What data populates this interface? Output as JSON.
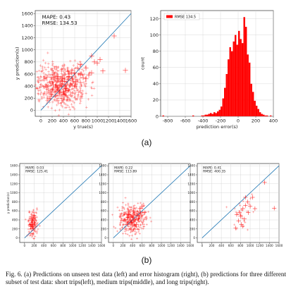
{
  "figure": {
    "label_a": "(a)",
    "label_b": "(b)",
    "caption": "Fig. 6.  (a) Predictions on unseen test data (left) and error histogram (right), (b) predictions for three different subset of test data: short trips(left), medium trips(middle), and long trips(right)."
  },
  "chart_data": [
    {
      "type": "scatter",
      "panel": "a-left",
      "xlabel": "y true(s)",
      "ylabel": "y prediction(s)",
      "xlim": [
        -100,
        1600
      ],
      "ylim": [
        -100,
        1650
      ],
      "x_ticks": [
        0,
        200,
        400,
        600,
        800,
        1000,
        1200,
        1400,
        1600
      ],
      "y_ticks": [
        0,
        200,
        400,
        600,
        800,
        1000,
        1200,
        1400,
        1600
      ],
      "grid": true,
      "annotations": [
        "MAPE: 0.43",
        "RMSE: 134.53"
      ],
      "reference_line": [
        [
          0,
          0
        ],
        [
          1600,
          1600
        ]
      ],
      "points": [
        [
          350,
          420
        ],
        [
          420,
          480
        ],
        [
          300,
          380
        ],
        [
          500,
          560
        ],
        [
          250,
          300
        ],
        [
          600,
          620
        ],
        [
          180,
          260
        ],
        [
          450,
          360
        ],
        [
          380,
          520
        ],
        [
          520,
          420
        ],
        [
          650,
          700
        ],
        [
          700,
          600
        ],
        [
          220,
          420
        ],
        [
          560,
          520
        ],
        [
          400,
          300
        ],
        [
          300,
          560
        ],
        [
          150,
          200
        ],
        [
          480,
          640
        ],
        [
          620,
          480
        ],
        [
          800,
          700
        ],
        [
          750,
          540
        ],
        [
          900,
          900
        ],
        [
          1000,
          780
        ],
        [
          850,
          580
        ],
        [
          1050,
          840
        ],
        [
          1300,
          1230
        ],
        [
          1500,
          660
        ],
        [
          950,
          800
        ],
        [
          1100,
          650
        ],
        [
          700,
          760
        ],
        [
          550,
          660
        ],
        [
          330,
          300
        ],
        [
          260,
          400
        ],
        [
          440,
          420
        ],
        [
          600,
          400
        ],
        [
          700,
          460
        ],
        [
          800,
          520
        ],
        [
          900,
          620
        ]
      ]
    },
    {
      "type": "bar",
      "panel": "a-right",
      "xlabel": "prediction error(s)",
      "ylabel": "count",
      "xlim": [
        -880,
        400
      ],
      "ylim": [
        0,
        130
      ],
      "x_ticks": [
        -800,
        -600,
        -400,
        -200,
        0,
        200,
        400
      ],
      "y_ticks": [
        0,
        20,
        40,
        60,
        80,
        100,
        120
      ],
      "grid": true,
      "legend": "top-left",
      "series": [
        {
          "name": "RMSE 134.5",
          "color": "#ff0000"
        }
      ],
      "bin_width": 20,
      "bin_start": -860,
      "values": [
        1,
        0,
        0,
        0,
        0,
        0,
        0,
        0,
        0,
        0,
        0,
        0,
        0,
        0,
        0,
        0,
        0,
        1,
        0,
        0,
        0,
        0,
        1,
        1,
        2,
        2,
        3,
        4,
        3,
        5,
        4,
        6,
        8,
        12,
        22,
        35,
        52,
        70,
        85,
        80,
        92,
        100,
        88,
        105,
        95,
        90,
        122,
        110,
        76,
        66,
        40,
        30,
        19,
        13,
        9,
        5,
        3,
        2,
        1,
        1,
        0,
        1,
        0,
        0
      ]
    },
    {
      "type": "scatter",
      "panel": "b-left",
      "xlim": [
        -100,
        1600
      ],
      "ylim": [
        -100,
        1650
      ],
      "x_ticks": [
        0,
        200,
        400,
        600,
        800,
        1000,
        1200,
        1400,
        1600
      ],
      "y_ticks": [
        0,
        200,
        400,
        600,
        800,
        1000,
        1200,
        1400,
        1600
      ],
      "ylabel": "y prediction(s)",
      "grid": true,
      "annotations": [
        "MAPE: 0.03",
        "RMSE: 125.41"
      ],
      "points": [
        [
          150,
          200
        ],
        [
          170,
          300
        ],
        [
          200,
          350
        ],
        [
          130,
          250
        ],
        [
          180,
          420
        ],
        [
          220,
          260
        ],
        [
          160,
          380
        ],
        [
          200,
          500
        ],
        [
          140,
          300
        ],
        [
          210,
          320
        ],
        [
          190,
          220
        ],
        [
          170,
          450
        ]
      ]
    },
    {
      "type": "scatter",
      "panel": "b-middle",
      "xlim": [
        -100,
        1600
      ],
      "ylim": [
        -100,
        1650
      ],
      "x_ticks": [
        0,
        200,
        400,
        600,
        800,
        1000,
        1200,
        1400,
        1600
      ],
      "y_ticks": [
        0,
        200,
        400,
        600,
        800,
        1000,
        1200,
        1400,
        1600
      ],
      "grid": true,
      "annotations": [
        "MAPE: 0.22",
        "RMSE: 113.89"
      ],
      "points": [
        [
          300,
          300
        ],
        [
          350,
          400
        ],
        [
          400,
          450
        ],
        [
          450,
          400
        ],
        [
          500,
          500
        ],
        [
          320,
          520
        ],
        [
          420,
          600
        ],
        [
          550,
          650
        ],
        [
          380,
          350
        ],
        [
          480,
          300
        ],
        [
          600,
          700
        ],
        [
          650,
          560
        ],
        [
          300,
          460
        ],
        [
          520,
          420
        ],
        [
          560,
          560
        ],
        [
          420,
          380
        ]
      ]
    },
    {
      "type": "scatter",
      "panel": "b-right",
      "xlim": [
        -100,
        1600
      ],
      "ylim": [
        -100,
        1650
      ],
      "x_ticks": [
        0,
        200,
        400,
        600,
        800,
        1000,
        1200,
        1400,
        1600
      ],
      "y_ticks": [
        0,
        200,
        400,
        600,
        800,
        1000,
        1200,
        1400,
        1600
      ],
      "grid": true,
      "annotations": [
        "MAPE: 0.41",
        "RMSE: 400.35"
      ],
      "points": [
        [
          720,
          520
        ],
        [
          760,
          380
        ],
        [
          800,
          480
        ],
        [
          850,
          650
        ],
        [
          900,
          720
        ],
        [
          950,
          800
        ],
        [
          820,
          300
        ],
        [
          780,
          560
        ],
        [
          880,
          420
        ],
        [
          1000,
          700
        ],
        [
          1050,
          900
        ],
        [
          900,
          900
        ],
        [
          1300,
          1230
        ],
        [
          1500,
          660
        ],
        [
          700,
          220
        ],
        [
          840,
          260
        ],
        [
          960,
          560
        ],
        [
          1100,
          650
        ]
      ]
    }
  ]
}
